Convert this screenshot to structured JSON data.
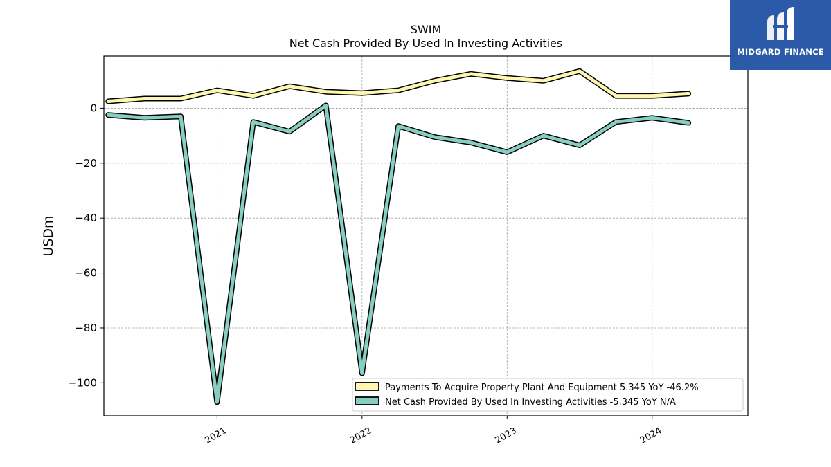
{
  "chart_data": {
    "type": "line",
    "title": "SWIM",
    "subtitle": "Net Cash Provided By Used In Investing Activities",
    "ylabel": "USDm",
    "xlabel": "",
    "ylim": [
      -112,
      19
    ],
    "xlim": [
      2020.22,
      2024.66
    ],
    "yticks": [
      0,
      -20,
      -40,
      -60,
      -80,
      -100
    ],
    "ytick_labels": [
      "0",
      "−20",
      "−40",
      "−60",
      "−80",
      "−100"
    ],
    "xticks": [
      2021,
      2022,
      2023,
      2024
    ],
    "xtick_labels": [
      "2021",
      "2022",
      "2023",
      "2024"
    ],
    "grid": true,
    "legend_position": "lower-right",
    "x": [
      2020.25,
      2020.5,
      2020.75,
      2021.0,
      2021.25,
      2021.5,
      2021.75,
      2022.0,
      2022.25,
      2022.5,
      2022.75,
      2023.0,
      2023.25,
      2023.5,
      2023.75,
      2024.0,
      2024.25
    ],
    "series": [
      {
        "name": "Payments To Acquire Property Plant And Equipment  5.345 YoY -46.2%",
        "color": "#fff7b0",
        "values": [
          2.5,
          3.5,
          3.5,
          6.5,
          4.5,
          8.0,
          6.0,
          5.5,
          6.5,
          10.0,
          12.5,
          11.0,
          10.0,
          13.5,
          4.5,
          4.5,
          5.3
        ]
      },
      {
        "name": "Net Cash Provided By Used In Investing Activities  -5.345 YoY N/A",
        "color": "#86cebf",
        "values": [
          -2.5,
          -3.5,
          -3.0,
          -107.0,
          -5.0,
          -8.5,
          1.0,
          -96.5,
          -6.5,
          -10.5,
          -12.5,
          -16.0,
          -10.0,
          -13.5,
          -5.0,
          -3.5,
          -5.3
        ]
      }
    ]
  },
  "logo": {
    "text": "MIDGARD FINANCE",
    "background": "#2a5aa8"
  }
}
